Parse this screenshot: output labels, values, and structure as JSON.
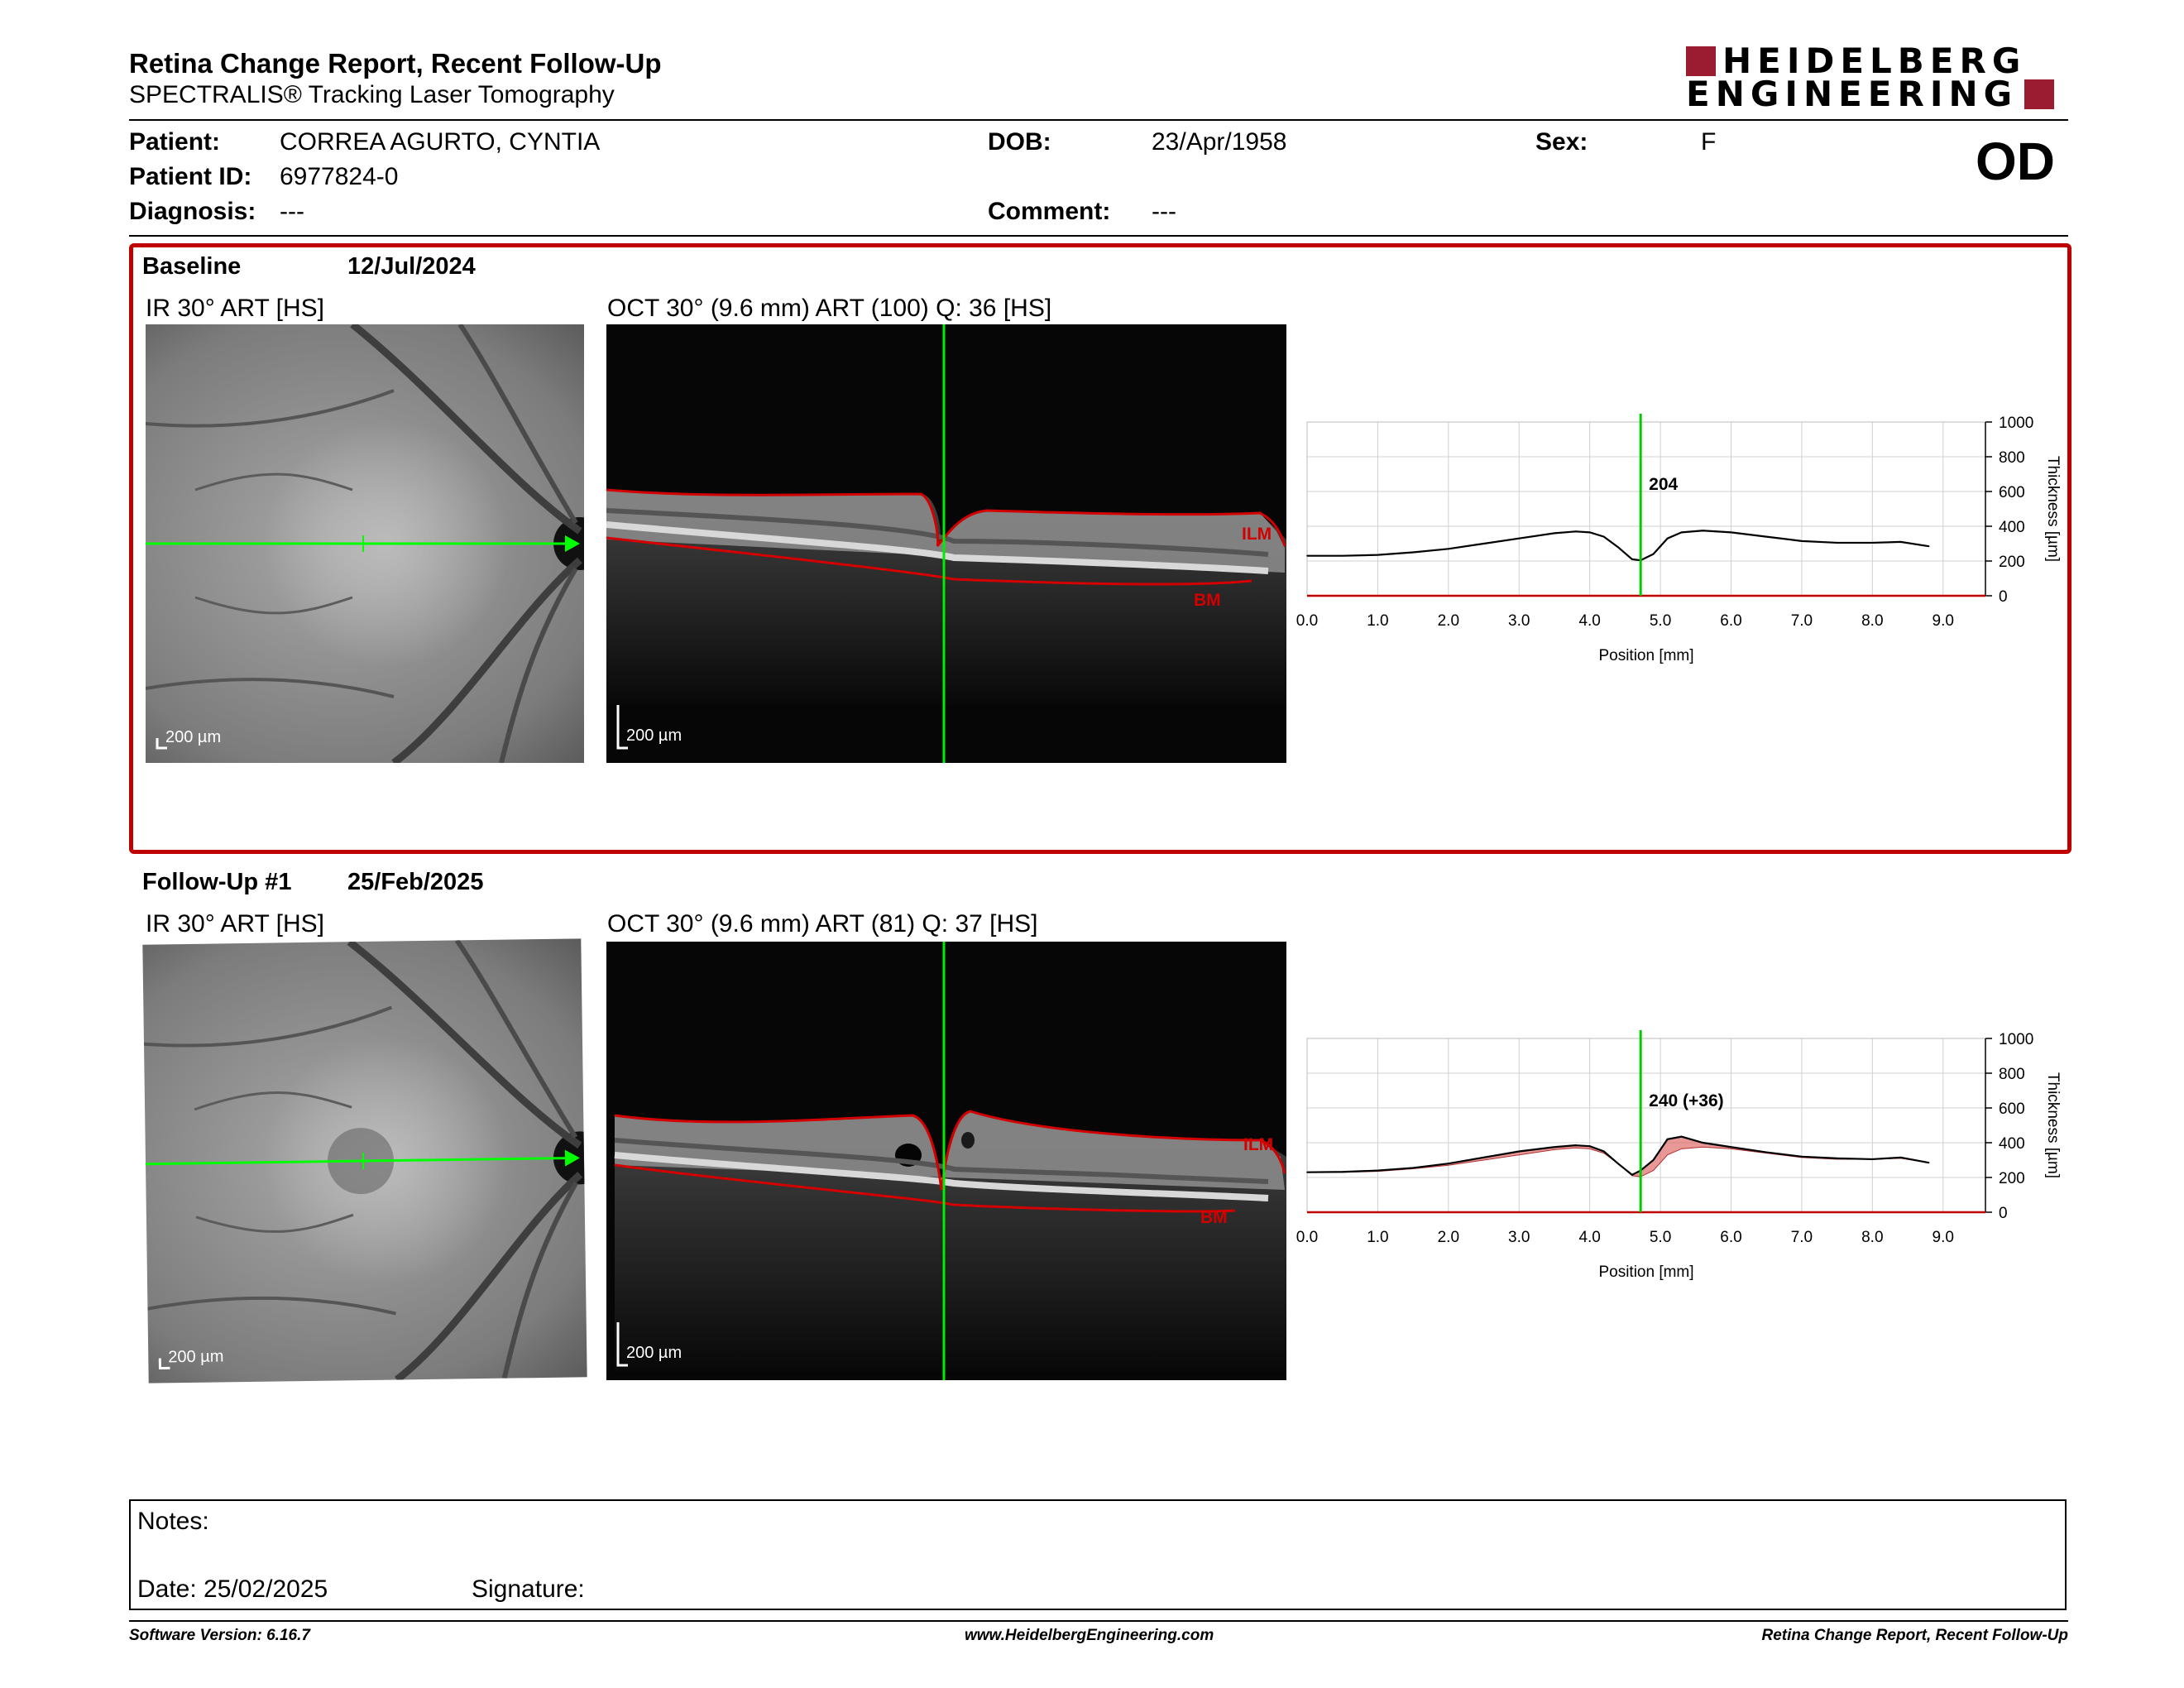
{
  "header": {
    "title": "Retina Change Report, Recent Follow-Up",
    "subtitle": "SPECTRALIS® Tracking Laser Tomography",
    "logo_line1": "HEIDELBERG",
    "logo_line2": "ENGINEERING"
  },
  "patient": {
    "name_label": "Patient:",
    "name": "CORREA AGURTO, CYNTIA",
    "id_label": "Patient ID:",
    "id": "6977824-0",
    "diagnosis_label": "Diagnosis:",
    "diagnosis": "---",
    "dob_label": "DOB:",
    "dob": "23/Apr/1958",
    "comment_label": "Comment:",
    "comment": "---",
    "sex_label": "Sex:",
    "sex": "F",
    "eye": "OD"
  },
  "baseline": {
    "label": "Baseline",
    "date": "12/Jul/2024",
    "ir_label": "IR 30° ART [HS]",
    "oct_label": "OCT 30° (9.6 mm) ART (100) Q: 36 [HS]",
    "ir_scale": "200 µm",
    "oct_scale": "200 µm",
    "ilm": "ILM",
    "bm": "BM"
  },
  "followup": {
    "label": "Follow-Up #1",
    "date": "25/Feb/2025",
    "ir_label": "IR 30° ART [HS]",
    "oct_label": "OCT 30° (9.6 mm) ART (81) Q: 37 [HS]",
    "ir_scale": "200 µm",
    "oct_scale": "200 µm",
    "ilm": "ILM",
    "bm": "BM"
  },
  "chart_data": [
    {
      "type": "line",
      "x": [
        0.0,
        0.5,
        1.0,
        1.5,
        2.0,
        2.5,
        3.0,
        3.5,
        3.8,
        4.0,
        4.2,
        4.4,
        4.6,
        4.72,
        4.9,
        5.1,
        5.3,
        5.6,
        6.0,
        6.5,
        7.0,
        7.5,
        8.0,
        8.4,
        8.8
      ],
      "y": [
        230,
        230,
        235,
        250,
        270,
        300,
        330,
        360,
        370,
        365,
        340,
        280,
        210,
        204,
        240,
        330,
        365,
        375,
        365,
        340,
        315,
        305,
        305,
        310,
        285
      ],
      "xlabel": "Position [mm]",
      "ylabel": "Thickness [µm]",
      "xticks": [
        "0.0",
        "1.0",
        "2.0",
        "3.0",
        "4.0",
        "5.0",
        "6.0",
        "7.0",
        "8.0",
        "9.0"
      ],
      "yticks": [
        "0",
        "200",
        "400",
        "600",
        "800",
        "1000"
      ],
      "xlim": [
        0,
        9.6
      ],
      "ylim": [
        0,
        1000
      ],
      "cursor_x": 4.72,
      "cursor_label": "204",
      "grid": true
    },
    {
      "type": "line",
      "x": [
        0.0,
        0.5,
        1.0,
        1.5,
        2.0,
        2.5,
        3.0,
        3.5,
        3.8,
        4.0,
        4.2,
        4.4,
        4.6,
        4.72,
        4.9,
        5.1,
        5.3,
        5.6,
        6.0,
        6.5,
        7.0,
        7.5,
        8.0,
        8.4,
        8.8
      ],
      "y": [
        230,
        232,
        240,
        255,
        280,
        315,
        350,
        375,
        385,
        380,
        350,
        280,
        215,
        240,
        300,
        420,
        435,
        400,
        375,
        345,
        320,
        310,
        305,
        315,
        285
      ],
      "baseline_y": [
        230,
        230,
        235,
        250,
        270,
        300,
        330,
        360,
        370,
        365,
        340,
        280,
        210,
        204,
        240,
        330,
        365,
        375,
        365,
        340,
        315,
        305,
        305,
        310,
        285
      ],
      "xlabel": "Position [mm]",
      "ylabel": "Thickness [µm]",
      "xticks": [
        "0.0",
        "1.0",
        "2.0",
        "3.0",
        "4.0",
        "5.0",
        "6.0",
        "7.0",
        "8.0",
        "9.0"
      ],
      "yticks": [
        "0",
        "200",
        "400",
        "600",
        "800",
        "1000"
      ],
      "xlim": [
        0,
        9.6
      ],
      "ylim": [
        0,
        1000
      ],
      "cursor_x": 4.72,
      "cursor_label": "240 (+36)",
      "grid": true
    }
  ],
  "notes": {
    "notes_label": "Notes:",
    "date_label": "Date: 25/02/2025",
    "signature_label": "Signature:"
  },
  "footer": {
    "version": "Software Version: 6.16.7",
    "website": "www.HeidelbergEngineering.com",
    "report": "Retina Change Report, Recent Follow-Up"
  }
}
